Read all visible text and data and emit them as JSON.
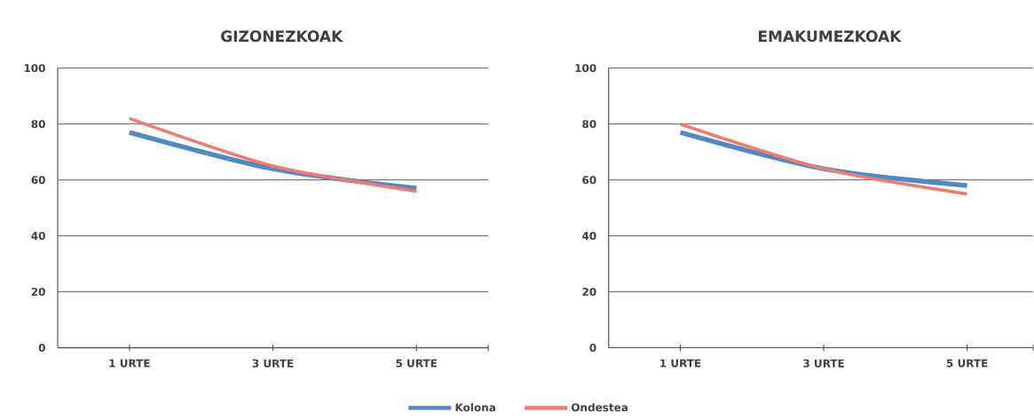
{
  "chart_data": [
    {
      "type": "line",
      "title": "GIZONEZKOAK",
      "categories": [
        "1 URTE",
        "3 URTE",
        "5 URTE"
      ],
      "series": [
        {
          "name": "Kolona",
          "color": "#4f8ac4",
          "values": [
            77,
            64,
            57
          ]
        },
        {
          "name": "Ondestea",
          "color": "#f07b70",
          "values": [
            82,
            65,
            56
          ]
        }
      ],
      "ylim": [
        0,
        100
      ],
      "yticks": [
        0,
        20,
        40,
        60,
        80,
        100
      ],
      "grid": "y",
      "legend": "bottom"
    },
    {
      "type": "line",
      "title": "EMAKUMEZKOAK",
      "categories": [
        "1 URTE",
        "3 URTE",
        "5 URTE"
      ],
      "series": [
        {
          "color": "#4f8ac4",
          "values": [
            77,
            64,
            58
          ]
        },
        {
          "color": "#f07b70",
          "values": [
            80,
            64,
            55
          ]
        }
      ],
      "ylim": [
        0,
        100
      ],
      "yticks": [
        0,
        20,
        40,
        60,
        80,
        100
      ],
      "grid": "y"
    }
  ]
}
